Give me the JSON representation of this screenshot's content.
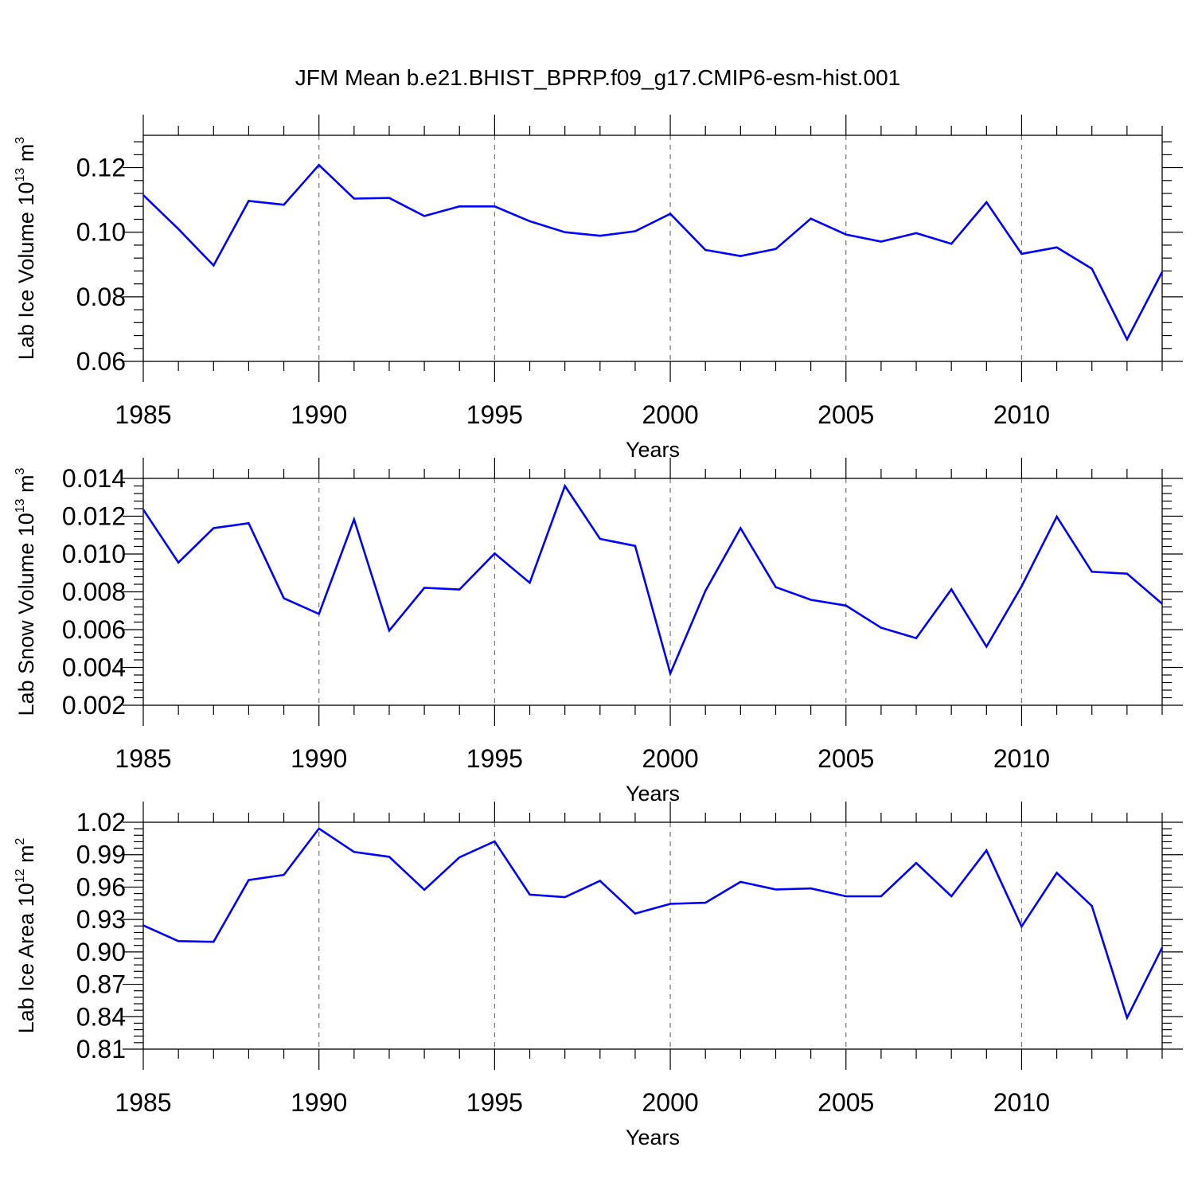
{
  "title": "JFM Mean b.e21.BHIST_BPRP.f09_g17.CMIP6-esm-hist.001",
  "chart_data": [
    {
      "type": "line",
      "name": "ice-volume",
      "title": "",
      "xlabel": "Years",
      "ylabel": "Lab Ice Volume 10",
      "ylabel_exp": "13",
      "ylabel_unit": " m",
      "ylabel_unit_exp": "3",
      "xlim": [
        1985,
        2014
      ],
      "ylim": [
        0.06,
        0.13
      ],
      "yticks": [
        0.06,
        0.08,
        0.1,
        0.12
      ],
      "ytick_labels": [
        "0.06",
        "0.08",
        "0.10",
        "0.12"
      ],
      "xticks": [
        1985,
        1990,
        1995,
        2000,
        2005,
        2010
      ],
      "xtick_labels": [
        "1985",
        "1990",
        "1995",
        "2000",
        "2005",
        "2010"
      ],
      "grid_x": [
        1990,
        1995,
        2000,
        2005,
        2010
      ],
      "color": "#0000ff",
      "x": [
        1985,
        1986,
        1987,
        1988,
        1989,
        1990,
        1991,
        1992,
        1993,
        1994,
        1995,
        1996,
        1997,
        1998,
        1999,
        2000,
        2001,
        2002,
        2003,
        2004,
        2005,
        2006,
        2007,
        2008,
        2009,
        2010,
        2011,
        2012,
        2013,
        2014
      ],
      "y": [
        0.1115,
        0.101,
        0.0897,
        0.1097,
        0.1085,
        0.1208,
        0.1104,
        0.1106,
        0.105,
        0.108,
        0.108,
        0.1034,
        0.1,
        0.0989,
        0.1003,
        0.1057,
        0.0945,
        0.0926,
        0.0948,
        0.1042,
        0.0993,
        0.0971,
        0.0997,
        0.0964,
        0.1093,
        0.0933,
        0.0953,
        0.0887,
        0.0668,
        0.0877
      ]
    },
    {
      "type": "line",
      "name": "snow-volume",
      "title": "",
      "xlabel": "Years",
      "ylabel": "Lab Snow Volume 10",
      "ylabel_exp": "13",
      "ylabel_unit": " m",
      "ylabel_unit_exp": "3",
      "xlim": [
        1985,
        2014
      ],
      "ylim": [
        0.002,
        0.014
      ],
      "yticks": [
        0.002,
        0.004,
        0.006,
        0.008,
        0.01,
        0.012,
        0.014
      ],
      "ytick_labels": [
        "0.002",
        "0.004",
        "0.006",
        "0.008",
        "0.010",
        "0.012",
        "0.014"
      ],
      "xticks": [
        1985,
        1990,
        1995,
        2000,
        2005,
        2010
      ],
      "xtick_labels": [
        "1985",
        "1990",
        "1995",
        "2000",
        "2005",
        "2010"
      ],
      "grid_x": [
        1990,
        1995,
        2000,
        2005,
        2010
      ],
      "color": "#0000ff",
      "x": [
        1985,
        1986,
        1987,
        1988,
        1989,
        1990,
        1991,
        1992,
        1993,
        1994,
        1995,
        1996,
        1997,
        1998,
        1999,
        2000,
        2001,
        2002,
        2003,
        2004,
        2005,
        2006,
        2007,
        2008,
        2009,
        2010,
        2011,
        2012,
        2013,
        2014
      ],
      "y": [
        0.01235,
        0.00955,
        0.01137,
        0.01163,
        0.00766,
        0.00683,
        0.01183,
        0.00595,
        0.00821,
        0.00812,
        0.01003,
        0.00848,
        0.0136,
        0.0108,
        0.01043,
        0.00368,
        0.00805,
        0.01137,
        0.00825,
        0.00758,
        0.00727,
        0.0061,
        0.00555,
        0.00813,
        0.0051,
        0.00829,
        0.01198,
        0.00906,
        0.00896,
        0.00737
      ]
    },
    {
      "type": "line",
      "name": "ice-area",
      "title": "",
      "xlabel": "Years",
      "ylabel": "Lab Ice Area 10",
      "ylabel_exp": "12",
      "ylabel_unit": " m",
      "ylabel_unit_exp": "2",
      "xlim": [
        1985,
        2014
      ],
      "ylim": [
        0.81,
        1.02
      ],
      "yticks": [
        0.81,
        0.84,
        0.87,
        0.9,
        0.93,
        0.96,
        0.99,
        1.02
      ],
      "ytick_labels": [
        "0.81",
        "0.84",
        "0.87",
        "0.90",
        "0.93",
        "0.96",
        "0.99",
        "1.02"
      ],
      "xticks": [
        1985,
        1990,
        1995,
        2000,
        2005,
        2010
      ],
      "xtick_labels": [
        "1985",
        "1990",
        "1995",
        "2000",
        "2005",
        "2010"
      ],
      "grid_x": [
        1990,
        1995,
        2000,
        2005,
        2010
      ],
      "color": "#0000ff",
      "x": [
        1985,
        1986,
        1987,
        1988,
        1989,
        1990,
        1991,
        1992,
        1993,
        1994,
        1995,
        1996,
        1997,
        1998,
        1999,
        2000,
        2001,
        2002,
        2003,
        2004,
        2005,
        2006,
        2007,
        2008,
        2009,
        2010,
        2011,
        2012,
        2013,
        2014
      ],
      "y": [
        0.9245,
        0.91,
        0.9093,
        0.9665,
        0.9713,
        1.0142,
        0.9925,
        0.988,
        0.9575,
        0.9875,
        1.0023,
        0.953,
        0.9507,
        0.9658,
        0.9355,
        0.9445,
        0.9455,
        0.9648,
        0.9578,
        0.9588,
        0.9515,
        0.9515,
        0.9823,
        0.9515,
        0.994,
        0.9235,
        0.9732,
        0.9425,
        0.839,
        0.904
      ]
    }
  ]
}
